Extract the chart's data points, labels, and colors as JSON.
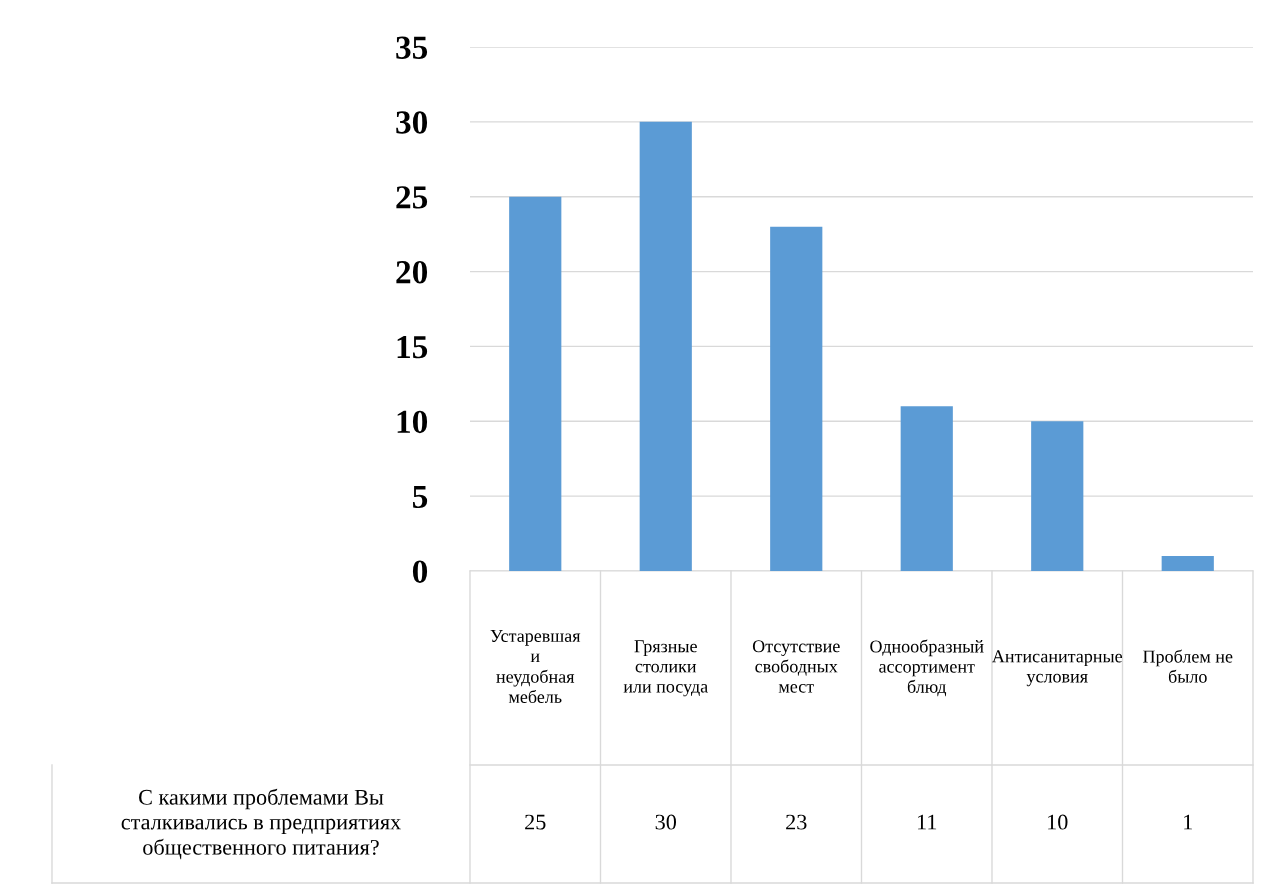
{
  "chart_data": {
    "type": "bar",
    "categories": [
      "Устаревшая и неудобная мебель",
      "Грязные столики или посуда",
      "Отсутствие свободных мест",
      "Однообразный ассортимент блюд",
      "Антисанитарные условия",
      "Проблем не было"
    ],
    "series": [
      {
        "name": "С какими проблемами Вы сталкивались в предприятиях общественного питания?",
        "color": "#5b9bd5",
        "values": [
          25,
          30,
          23,
          11,
          10,
          1
        ]
      }
    ],
    "ylim": [
      0,
      35
    ],
    "yticks": [
      0,
      5,
      10,
      15,
      20,
      25,
      30,
      35
    ],
    "grid": "y",
    "data_labels": true,
    "legend": false
  }
}
